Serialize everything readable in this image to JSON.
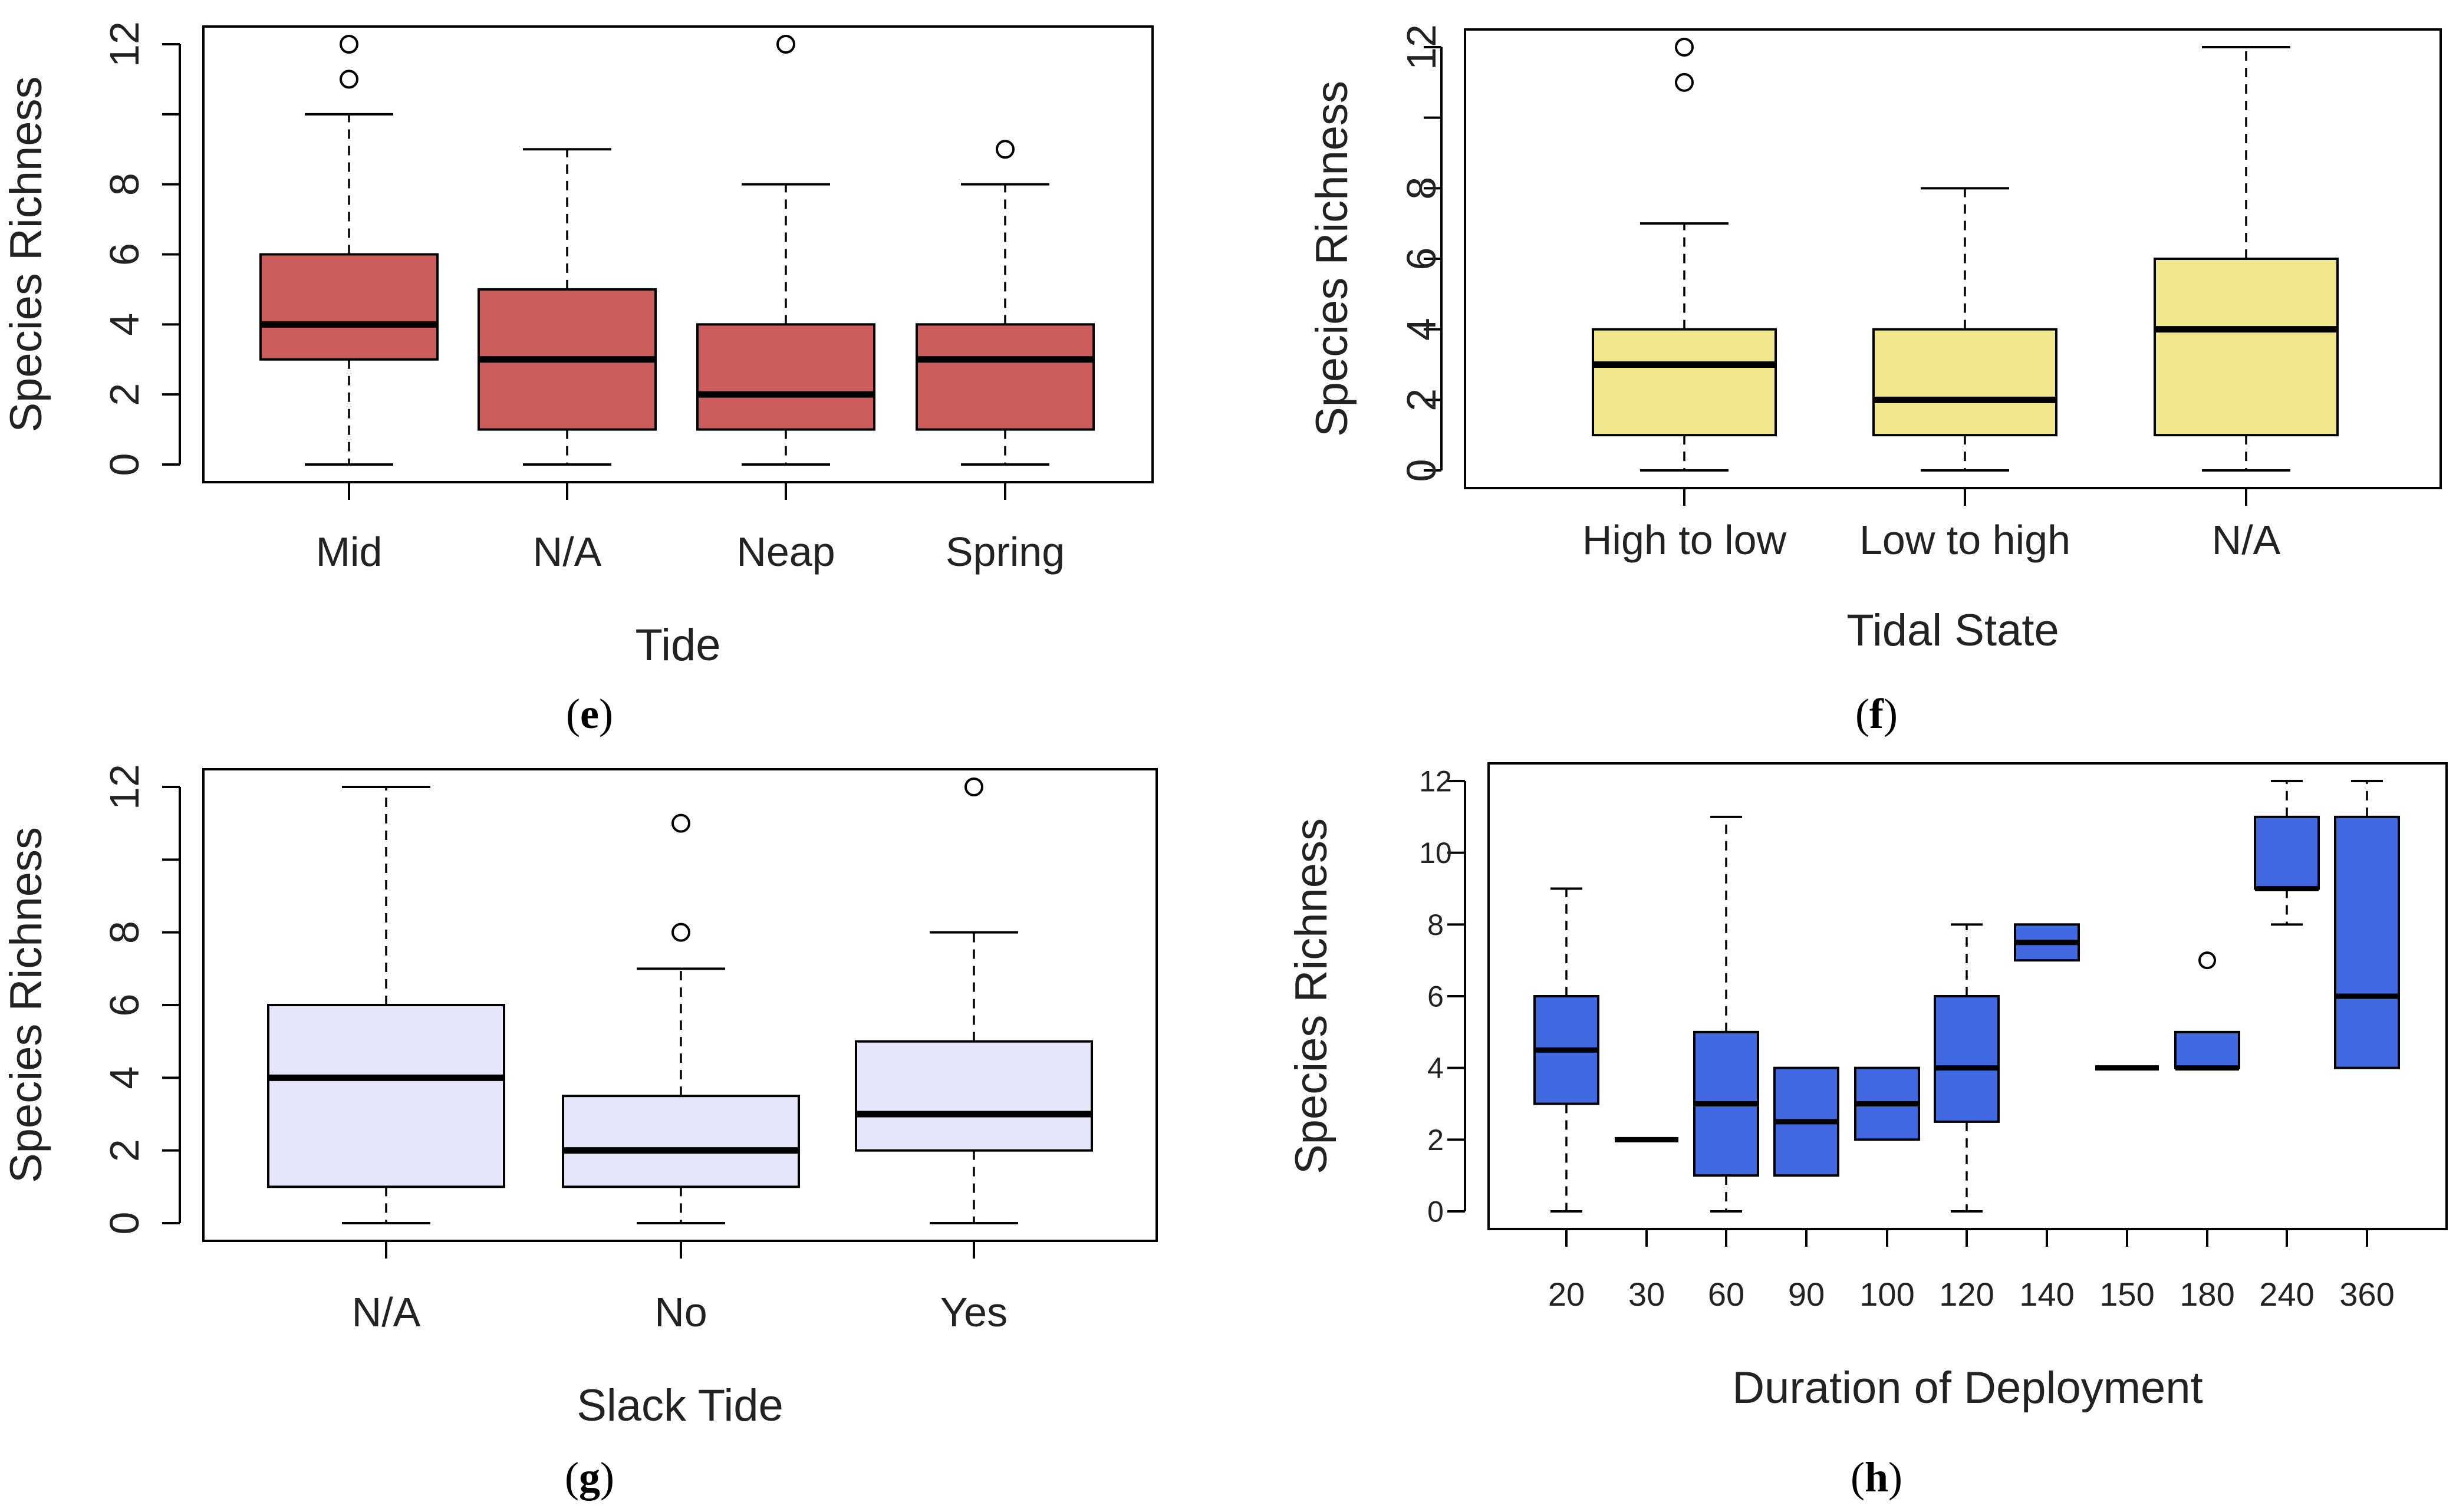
{
  "figure": {
    "chart_data": [
      {
        "type": "box",
        "panel": "e",
        "title": "",
        "xlabel": "Tide",
        "ylabel": "Species Richness",
        "ylim": [
          0,
          12
        ],
        "yticks": [
          0,
          2,
          4,
          6,
          8,
          10,
          12
        ],
        "ytick_labels": [
          "0",
          "2",
          "4",
          "6",
          "8",
          "",
          "12"
        ],
        "fill": "#CD5C5C",
        "categories": [
          "Mid",
          "N/A",
          "Neap",
          "Spring"
        ],
        "boxes": [
          {
            "whisker_low": 0,
            "q1": 3,
            "median": 4,
            "q3": 6,
            "whisker_high": 10,
            "outliers": [
              11,
              12
            ]
          },
          {
            "whisker_low": 0,
            "q1": 1,
            "median": 3,
            "q3": 5,
            "whisker_high": 9,
            "outliers": []
          },
          {
            "whisker_low": 0,
            "q1": 1,
            "median": 2,
            "q3": 4,
            "whisker_high": 8,
            "outliers": [
              12
            ]
          },
          {
            "whisker_low": 0,
            "q1": 1,
            "median": 3,
            "q3": 4,
            "whisker_high": 8,
            "outliers": [
              9
            ]
          }
        ]
      },
      {
        "type": "box",
        "panel": "f",
        "title": "",
        "xlabel": "Tidal State",
        "ylabel": "Species Richness",
        "ylim": [
          0,
          12
        ],
        "yticks": [
          0,
          2,
          4,
          6,
          8,
          10,
          12
        ],
        "ytick_labels": [
          "0",
          "2",
          "4",
          "6",
          "8",
          "",
          "12"
        ],
        "fill": "#F0E68C",
        "categories": [
          "High to low",
          "Low to high",
          "N/A"
        ],
        "boxes": [
          {
            "whisker_low": 0,
            "q1": 1,
            "median": 3,
            "q3": 4,
            "whisker_high": 7,
            "outliers": [
              11,
              12
            ]
          },
          {
            "whisker_low": 0,
            "q1": 1,
            "median": 2,
            "q3": 4,
            "whisker_high": 8,
            "outliers": []
          },
          {
            "whisker_low": 0,
            "q1": 1,
            "median": 4,
            "q3": 6,
            "whisker_high": 12,
            "outliers": []
          }
        ]
      },
      {
        "type": "box",
        "panel": "g",
        "title": "",
        "xlabel": "Slack Tide",
        "ylabel": "Species Richness",
        "ylim": [
          0,
          12
        ],
        "yticks": [
          0,
          2,
          4,
          6,
          8,
          10,
          12
        ],
        "ytick_labels": [
          "0",
          "2",
          "4",
          "6",
          "8",
          "",
          "12"
        ],
        "fill": "#E6E6FA",
        "categories": [
          "N/A",
          "No",
          "Yes"
        ],
        "boxes": [
          {
            "whisker_low": 0,
            "q1": 1,
            "median": 4,
            "q3": 6,
            "whisker_high": 12,
            "outliers": []
          },
          {
            "whisker_low": 0,
            "q1": 1,
            "median": 2,
            "q3": 3.5,
            "whisker_high": 7,
            "outliers": [
              8,
              11
            ]
          },
          {
            "whisker_low": 0,
            "q1": 2,
            "median": 3,
            "q3": 5,
            "whisker_high": 8,
            "outliers": [
              12
            ]
          }
        ]
      },
      {
        "type": "box",
        "panel": "h",
        "title": "",
        "xlabel": "Duration of Deployment",
        "ylabel": "Species Richness",
        "ylim": [
          0,
          12
        ],
        "yticks": [
          0,
          2,
          4,
          6,
          8,
          10,
          12
        ],
        "ytick_labels": [
          "0",
          "2",
          "4",
          "6",
          "8",
          "10",
          "12"
        ],
        "fill": "#4169E1",
        "categories": [
          "20",
          "30",
          "60",
          "90",
          "100",
          "120",
          "140",
          "150",
          "180",
          "240",
          "360"
        ],
        "boxes": [
          {
            "whisker_low": 0,
            "q1": 3,
            "median": 4.5,
            "q3": 6,
            "whisker_high": 9,
            "outliers": []
          },
          {
            "whisker_low": 2,
            "q1": 2,
            "median": 2,
            "q3": 2,
            "whisker_high": 2,
            "outliers": []
          },
          {
            "whisker_low": 0,
            "q1": 1,
            "median": 3,
            "q3": 5,
            "whisker_high": 11,
            "outliers": []
          },
          {
            "whisker_low": 1,
            "q1": 1,
            "median": 2.5,
            "q3": 4,
            "whisker_high": 4,
            "outliers": []
          },
          {
            "whisker_low": 2,
            "q1": 2,
            "median": 3,
            "q3": 4,
            "whisker_high": 4,
            "outliers": []
          },
          {
            "whisker_low": 0,
            "q1": 2.5,
            "median": 4,
            "q3": 6,
            "whisker_high": 8,
            "outliers": []
          },
          {
            "whisker_low": 7,
            "q1": 7,
            "median": 7.5,
            "q3": 8,
            "whisker_high": 8,
            "outliers": []
          },
          {
            "whisker_low": 4,
            "q1": 4,
            "median": 4,
            "q3": 4,
            "whisker_high": 4,
            "outliers": []
          },
          {
            "whisker_low": 4,
            "q1": 4,
            "median": 4,
            "q3": 5,
            "whisker_high": 5,
            "outliers": [
              7
            ]
          },
          {
            "whisker_low": 8,
            "q1": 9,
            "median": 9,
            "q3": 11,
            "whisker_high": 12,
            "outliers": []
          },
          {
            "whisker_low": 4,
            "q1": 4,
            "median": 6,
            "q3": 11,
            "whisker_high": 12,
            "outliers": []
          }
        ]
      }
    ]
  }
}
